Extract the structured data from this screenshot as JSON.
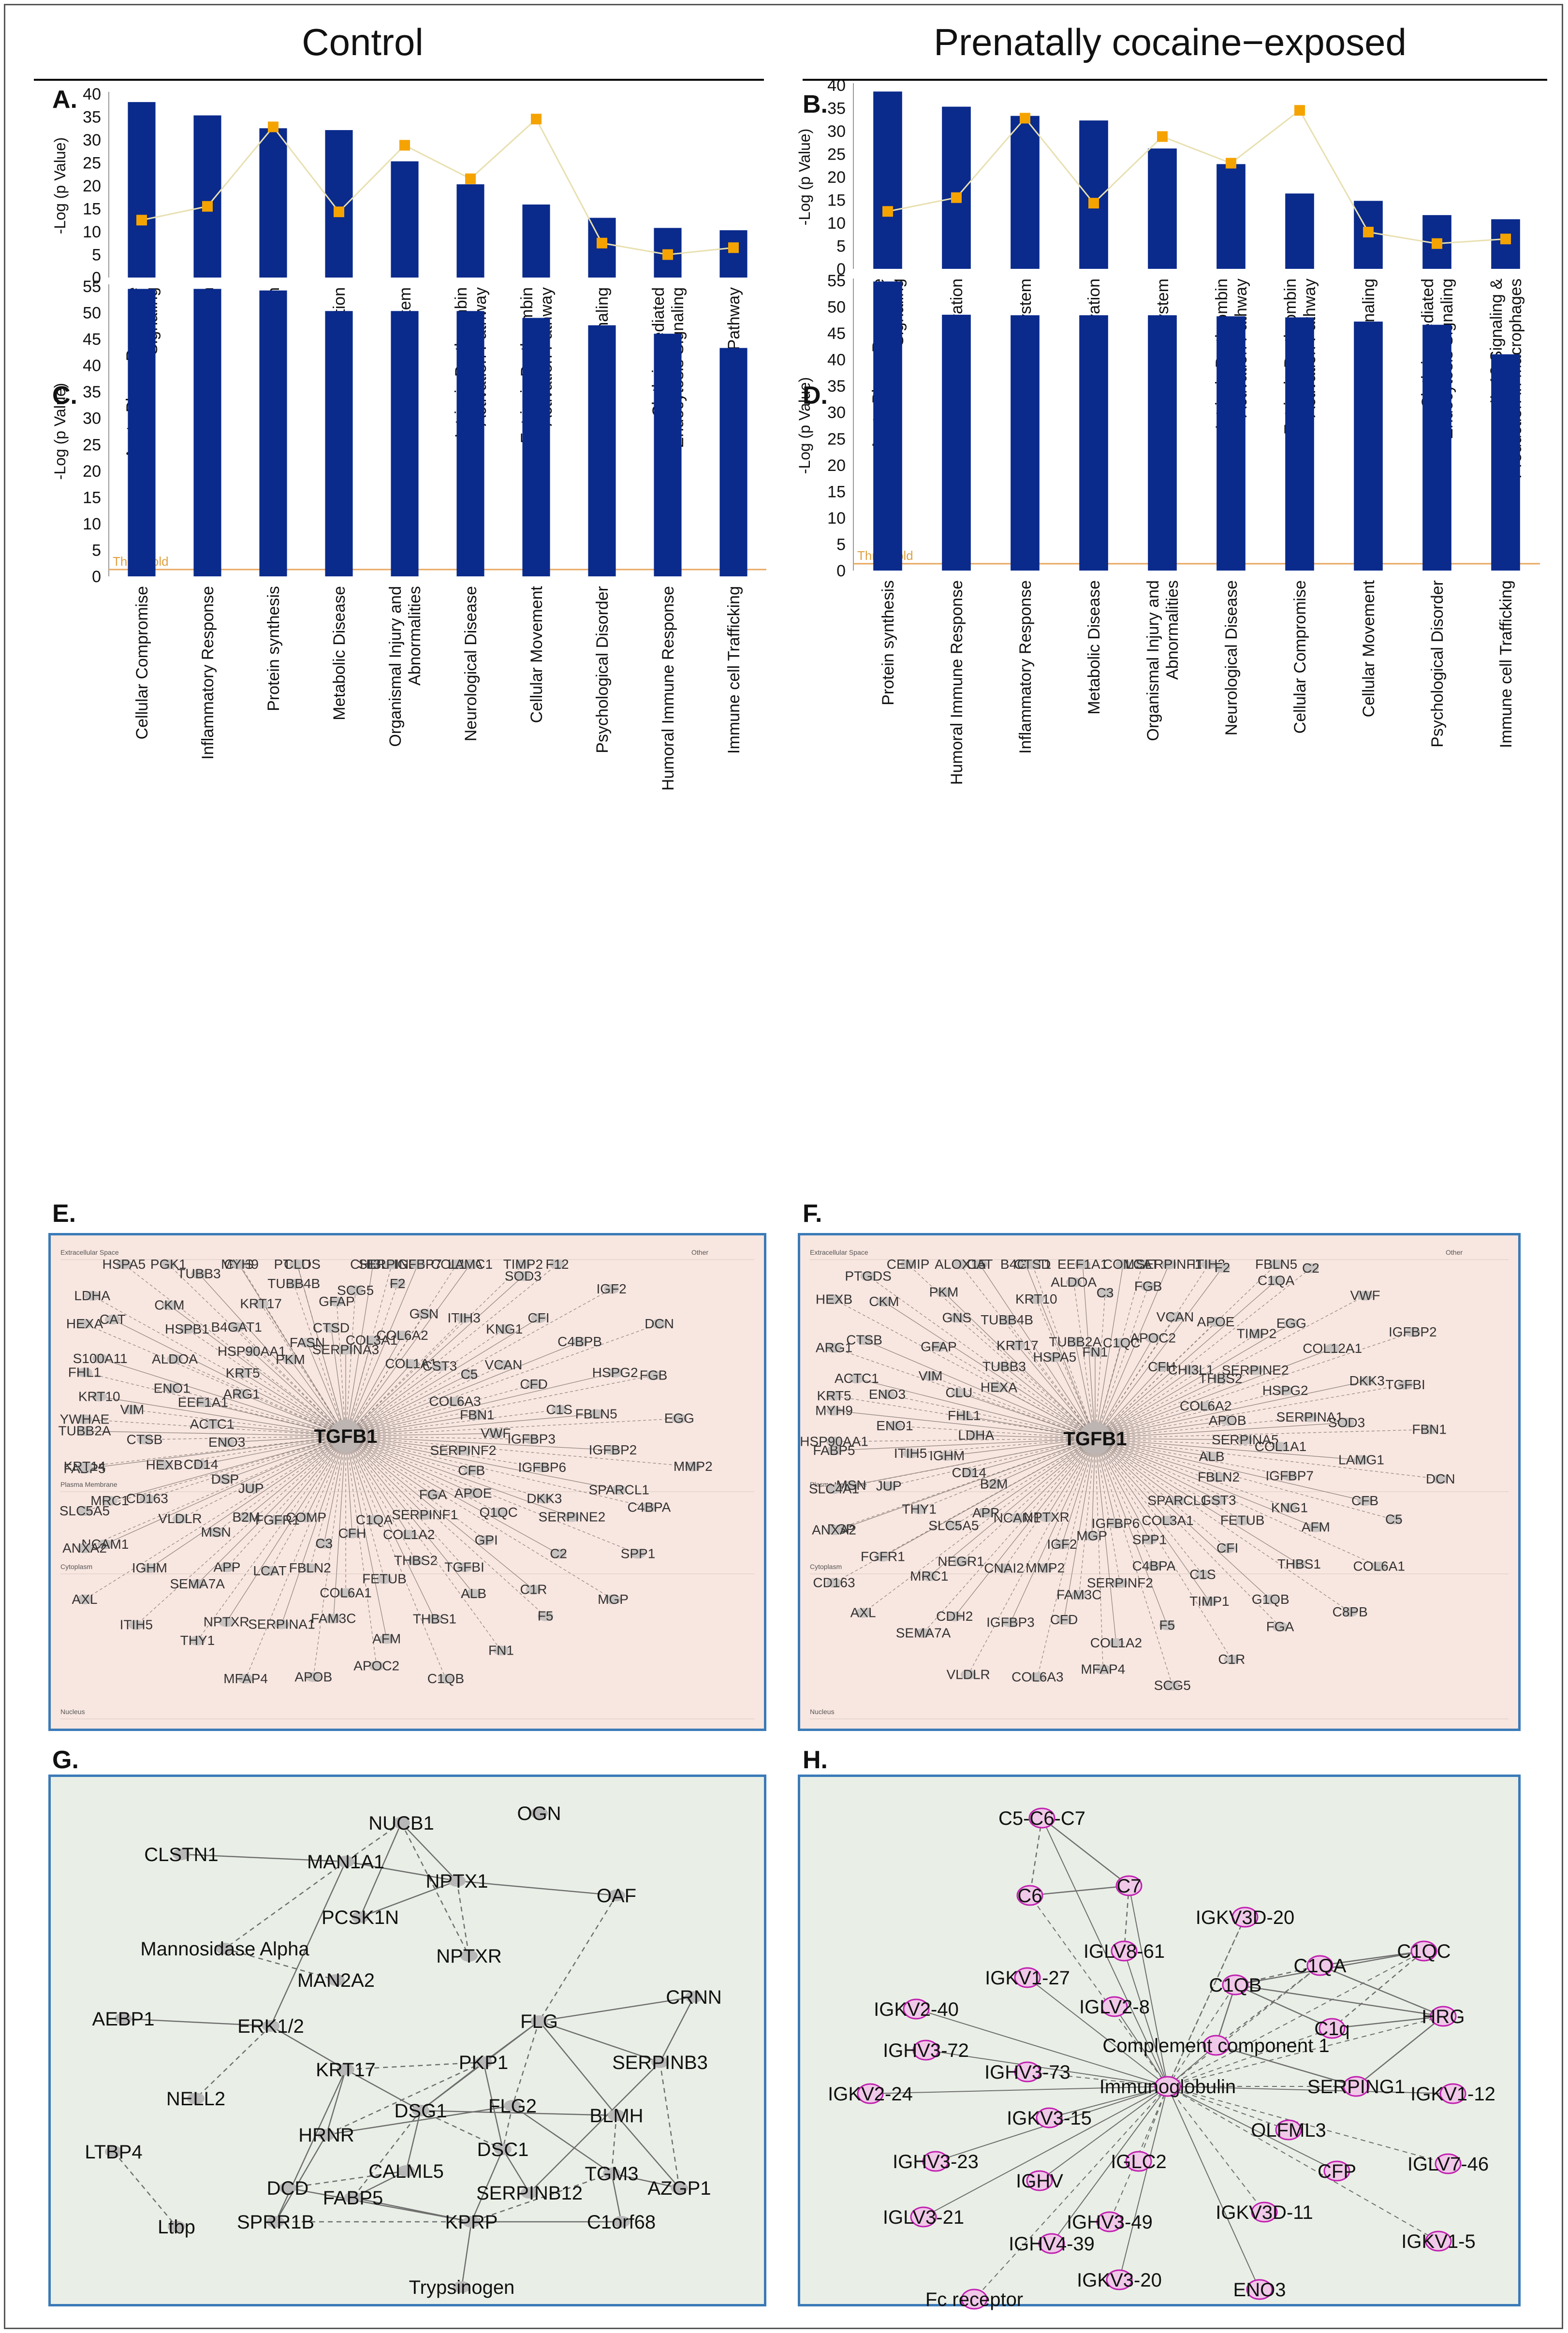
{
  "titles": {
    "control": "Control",
    "cocaine": "Prenatally cocaine−exposed"
  },
  "colors": {
    "bar": "#0a2a8c",
    "ratio": "#f5a300",
    "ratioLine": "#e8e0b0",
    "threshold": "#e8a860",
    "netBoxBorder": "#3a7ab8",
    "netPink": "#f8e6e0",
    "netGreen": "#e9efe6"
  },
  "chart_data": [
    {
      "id": "A",
      "label": "A.",
      "type": "bar",
      "ylabel": "-Log (p Value)",
      "ylim": [
        0,
        40
      ],
      "yticks": [
        0,
        5,
        10,
        15,
        20,
        25,
        30,
        35,
        40
      ],
      "categories": [
        "Acute Phase Response Signaling",
        "LXR/RXR Activation",
        "Complement System",
        "FXR/RXR Activation",
        "Coagulation System",
        "Intrinsic Prothrombin Activation Pathway",
        "Extrinsic Prothrombin Activation Pathway",
        "Atherosclerosis Signaling",
        "Clathrin-mediated Endocytosis Signaling",
        "GP6 Signaling Pathway"
      ],
      "values": [
        38.2,
        35.3,
        32.5,
        32.1,
        25.3,
        20.3,
        15.9,
        13.0,
        10.8,
        10.3
      ],
      "ratio": [
        12.5,
        15.5,
        32.8,
        14.3,
        28.8,
        21.5,
        34.5,
        7.5,
        5.0,
        6.5
      ]
    },
    {
      "id": "B",
      "label": "B.",
      "type": "bar",
      "ylabel": "-Log (p Value)",
      "ylim": [
        0,
        40
      ],
      "yticks": [
        0,
        5,
        10,
        15,
        20,
        25,
        30,
        35,
        40
      ],
      "categories": [
        "Acute Phase Response Signaling",
        "LXR/RXR Activation",
        "Complement System",
        "FXR/RXR Activation",
        "Coagulation System",
        "Intrinsic Prothrombin Activation Pathway",
        "Extrinsic Prothrombin Activation Pathway",
        "Atherosclerosis Signaling",
        "Clathrin-mediated Endocytosis Signaling",
        "IL-12 Signaling & Production in Macrophages"
      ],
      "values": [
        38.6,
        35.3,
        33.3,
        32.3,
        26.2,
        22.8,
        16.4,
        14.8,
        11.7,
        10.8
      ],
      "ratio": [
        12.5,
        15.5,
        32.8,
        14.3,
        28.8,
        23.0,
        34.5,
        8.0,
        5.5,
        6.5
      ]
    },
    {
      "id": "C",
      "label": "C.",
      "type": "bar",
      "ylabel": "-Log (p Value)",
      "ylim": [
        0,
        55
      ],
      "yticks": [
        0,
        5,
        10,
        15,
        20,
        25,
        30,
        35,
        40,
        45,
        50,
        55
      ],
      "threshold": 1.3,
      "thresholdLabel": "Threshold",
      "categories": [
        "Cellular Compromise",
        "Inflammatory Response",
        "Protein synthesis",
        "Metabolic Disease",
        "Organismal Injury and Abnormalities",
        "Neurological Disease",
        "Cellular Movement",
        "Psychological Disorder",
        "Humoral Immune Response",
        "Immune cell Trafficking"
      ],
      "values": [
        54.5,
        54.5,
        54.2,
        50.3,
        50.3,
        50.3,
        49.0,
        47.6,
        46.0,
        43.3
      ]
    },
    {
      "id": "D",
      "label": "D.",
      "type": "bar",
      "ylabel": "-Log (p Value)",
      "ylim": [
        0,
        55
      ],
      "yticks": [
        0,
        5,
        10,
        15,
        20,
        25,
        30,
        35,
        40,
        45,
        50,
        55
      ],
      "threshold": 1.3,
      "thresholdLabel": "Threshold",
      "categories": [
        "Protein synthesis",
        "Humoral Immune Response",
        "Inflammatory Response",
        "Metabolic Disease",
        "Organismal Injury and Abnormalities",
        "Neurological Disease",
        "Cellular Compromise",
        "Cellular Movement",
        "Psychological Disorder",
        "Immune cell Trafficking"
      ],
      "values": [
        54.8,
        48.5,
        48.4,
        48.4,
        48.4,
        48.2,
        48.0,
        47.2,
        46.6,
        41.0
      ]
    }
  ],
  "networks": {
    "E": {
      "label": "E.",
      "hub": "TGFB1",
      "compartments": [
        "Extracellular Space",
        "Other",
        "Plasma Membrane",
        "Cytoplasm",
        "Nucleus"
      ],
      "nodes": [
        "SERPINA3",
        "SCG5",
        "CHI3L1",
        "SERPINB5",
        "COL3A1",
        "F2",
        "IGFBP7",
        "COL12A",
        "COL6A2",
        "GSN",
        "LAMC1",
        "TIMP2",
        "COL1A1",
        "ITIH3",
        "SOD3",
        "F12",
        "CST3",
        "KNG1",
        "CFI",
        "IGF2",
        "C5",
        "VCAN",
        "C4BPB",
        "DCN",
        "COL6A3",
        "CFD",
        "HSPG2",
        "FGB",
        "FBN1",
        "C1S",
        "FBLN5",
        "EGG",
        "VWF",
        "IGFBP3",
        "IGFBP2",
        "MMP2",
        "SERPINF2",
        "IGFBP6",
        "SPARCL1",
        "C4BPA",
        "CFB",
        "DKK3",
        "SERPINE2",
        "SPP1",
        "APOE",
        "Q1QC",
        "C2",
        "MGP",
        "FGA",
        "GPI",
        "C1R",
        "F5",
        "SERPINF1",
        "TGFBI",
        "ALB",
        "FN1",
        "COL1A2",
        "THBS2",
        "THBS1",
        "C1QB",
        "C1QA",
        "FETUB",
        "AFM",
        "APOC2",
        "CFH",
        "COL6A1",
        "FAM3C",
        "APOB",
        "C3",
        "FBLN2",
        "SERPINA1",
        "MFAP4",
        "COMP",
        "LCAT",
        "NPTXR",
        "THY1",
        "FGFR1",
        "APP",
        "SEMA7A",
        "ITIH5",
        "B2M",
        "MSN",
        "IGHM",
        "AXL",
        "JUP",
        "VLDLR",
        "NCAM1",
        "ANXA2",
        "DSP",
        "CD163",
        "MRC1",
        "SLC5A5",
        "CD14",
        "HEXB",
        "FABP5",
        "KRT14",
        "ENO3",
        "CTSB",
        "TUBB2A",
        "YWHAE",
        "ACTC1",
        "VIM",
        "KRT10",
        "FHL1",
        "EEF1A1",
        "ENO1",
        "S100A11",
        "HEXA",
        "ARG1",
        "ALDOA",
        "CAT",
        "LDHA",
        "KRT5",
        "HSPB1",
        "CKM",
        "HSPA5",
        "HSP90AA1",
        "B4GAT1",
        "TUBB3",
        "PGK1",
        "PKM",
        "KRT17",
        "GNS",
        "MYH9",
        "FASN",
        "TUBB4B",
        "PTGDS",
        "CLU",
        "CTSD",
        "GFAP"
      ]
    },
    "F": {
      "label": "F.",
      "hub": "TGFB1",
      "compartments": [
        "Extracellular Space",
        "Other",
        "Plasma Membrane",
        "Cytoplasm",
        "Nucleus"
      ],
      "nodes": [
        "FN1",
        "C3",
        "COMP",
        "LCAT",
        "C1QC",
        "FGB",
        "SERPINF1",
        "ITIH3",
        "APOC2",
        "VCAN",
        "F2",
        "FBLN5",
        "CFH",
        "APOE",
        "C1QA",
        "C2",
        "CHI3L1",
        "TIMP2",
        "EGG",
        "VWF",
        "THBS2",
        "SERPINE2",
        "COL12A1",
        "IGFBP2",
        "COL6A2",
        "HSPG2",
        "DKK3",
        "TGFBI",
        "APOB",
        "SERPINA1",
        "SOD3",
        "FBN1",
        "SERPINA5",
        "COL1A1",
        "LAMG1",
        "DCN",
        "ALB",
        "IGFBP7",
        "CFB",
        "C5",
        "FBLN2",
        "KNG1",
        "AFM",
        "COL6A1",
        "GST3",
        "FETUB",
        "THBS1",
        "C8PB",
        "SPARCL1",
        "CFI",
        "G1QB",
        "FGA",
        "COL3A1",
        "C1S",
        "TIMP1",
        "C1R",
        "SPP1",
        "C4BPA",
        "F5",
        "SCG5",
        "IGFBP6",
        "SERPINF2",
        "COL1A2",
        "MFAP4",
        "MGP",
        "FAM3C",
        "CFD",
        "COL6A3",
        "IGF2",
        "MMP2",
        "IGFBP3",
        "VLDLR",
        "NPTXR",
        "CNAI2",
        "CDH2",
        "SEMA7A",
        "NCAM1",
        "NEGR1",
        "MRC1",
        "AXL",
        "APP",
        "SLC5A5",
        "FGFR1",
        "CD163",
        "B2M",
        "THY1",
        "DSP",
        "ANXA2",
        "CD14",
        "JUP",
        "MSN",
        "SLC4A1",
        "IGHM",
        "ITIH5",
        "FABP5",
        "HSP90AA1",
        "LDHA",
        "ENO1",
        "MYH9",
        "KRT5",
        "FHL1",
        "ENO3",
        "ACTC1",
        "ARG1",
        "CLU",
        "VIM",
        "CTSB",
        "HEXB",
        "HEXA",
        "GFAP",
        "CKM",
        "PTGDS",
        "TUBB3",
        "GNS",
        "PKM",
        "CEMIP",
        "KRT17",
        "TUBB4B",
        "CAT",
        "ALOX15",
        "HSPA5",
        "KRT10",
        "B4GAT1",
        "CTSD",
        "TUBB2A",
        "ALDOA",
        "EEF1A1"
      ]
    },
    "G": {
      "label": "G.",
      "nodes": [
        "NUCB1",
        "OGN",
        "CLSTN1",
        "MAN1A1",
        "NPTX1",
        "PCSK1N",
        "OAF",
        "Mannosidase Alpha",
        "NPTXR",
        "MAN2A2",
        "CRNN",
        "AEBP1",
        "ERK1/2",
        "FLG",
        "PKP1",
        "SERPINB3",
        "KRT17",
        "NELL2",
        "DSG1",
        "FLG2",
        "BLMH",
        "HRNR",
        "DSC1",
        "LTBP4",
        "TGM3",
        "CALML5",
        "DCD",
        "AZGP1",
        "FABP5",
        "SERPINB12",
        "SPRR1B",
        "KPRP",
        "C1orf68",
        "Ltbp",
        "Trypsinogen"
      ]
    },
    "H": {
      "label": "H.",
      "nodes": [
        "C5-C6-C7",
        "C6",
        "C7",
        "IGKV3D-20",
        "IGLV8-61",
        "C1QC",
        "IGKV1-27",
        "C1QA",
        "IGKV2-40",
        "C1QB",
        "IGLV2-8",
        "HRG",
        "IGHV3-72",
        "C1q",
        "Complement component 1",
        "IGHV3-73",
        "IGKV2-24",
        "Immunoglobulin",
        "IGKV1-12",
        "SERPING1",
        "IGKV3-15",
        "OLFML3",
        "IGHV3-23",
        "IGLC2",
        "CFP",
        "IGLV7-46",
        "IGHV",
        "IGKV3D-11",
        "IGLV3-21",
        "IGHV3-49",
        "IGHV4-39",
        "IGKV1-5",
        "IGKV3-20",
        "Fc receptor",
        "ENO3"
      ]
    }
  }
}
